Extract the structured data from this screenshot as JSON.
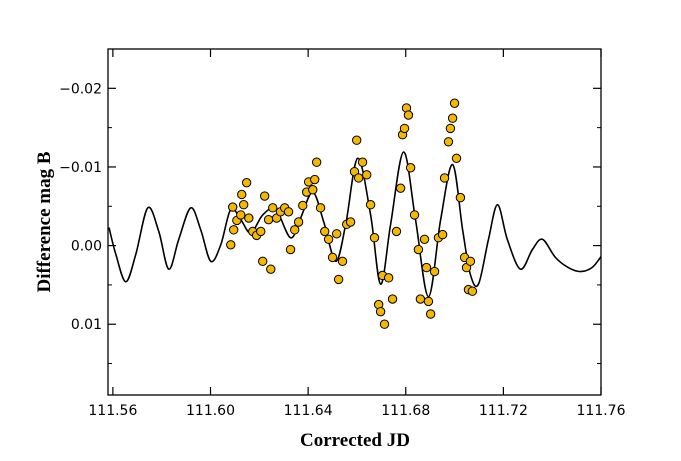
{
  "chart_data": {
    "type": "scatter",
    "xlabel": "Corrected JD",
    "ylabel": "Difference mag B",
    "xlim": [
      111.558,
      111.76
    ],
    "ylim": [
      -0.025,
      0.019
    ],
    "y_inverted": true,
    "xticks": [
      111.56,
      {
        "value": 111.6,
        "label": "111.60"
      },
      111.64,
      111.68,
      111.72,
      111.76
    ],
    "yticks": [
      {
        "value": -0.02,
        "label": "−0.02"
      },
      {
        "value": -0.01,
        "label": "−0.01"
      },
      {
        "value": 0,
        "label": "0.00"
      },
      0.01
    ],
    "yminor_ticks": [
      -0.015,
      -0.005,
      0.005,
      0.015
    ],
    "series": [
      {
        "type": "line",
        "color": "#000000",
        "x": [
          111.5584,
          111.5612,
          111.5653,
          111.5694,
          111.5743,
          111.5788,
          111.5829,
          111.587,
          111.5919,
          111.596,
          111.6001,
          111.6042,
          111.6083,
          111.6124,
          111.6165,
          111.6214,
          111.6267,
          111.6328,
          111.6369,
          111.6419,
          111.6464,
          111.6513,
          111.6554,
          111.6603,
          111.6656,
          111.6697,
          111.6738,
          111.6791,
          111.684,
          111.6893,
          111.6943,
          111.6992,
          111.7033,
          111.7065,
          111.7098,
          111.7139,
          111.7176,
          111.7216,
          111.727,
          111.7319,
          111.736,
          111.7413,
          111.7466,
          111.7514,
          111.7563,
          111.76
        ],
        "values": [
          -0.0023,
          0.0011,
          0.0046,
          0.0011,
          -0.0048,
          -0.0018,
          0.003,
          -0.0008,
          -0.0048,
          -0.002,
          0.002,
          -0.0001,
          -0.0046,
          -0.0033,
          -0.0016,
          -0.0039,
          -0.0046,
          -0.001,
          -0.0035,
          -0.0068,
          -0.003,
          0.002,
          -0.0027,
          -0.0111,
          -0.0039,
          0.0049,
          -0.0027,
          -0.0119,
          -0.0033,
          0.0065,
          -0.0033,
          -0.0103,
          -0.002,
          0.0037,
          0.0049,
          -0.0008,
          -0.0052,
          -0.0008,
          0.003,
          0.0005,
          -0.0008,
          0.0015,
          0.0028,
          0.0033,
          0.0028,
          0.0014
        ]
      },
      {
        "type": "scatter",
        "color": "#f5b800",
        "x": [
          111.6083,
          111.6091,
          111.6095,
          111.6108,
          111.6124,
          111.6128,
          111.6136,
          111.6148,
          111.6157,
          111.6173,
          111.6189,
          111.6206,
          111.6214,
          111.6222,
          111.6238,
          111.6247,
          111.6255,
          111.6271,
          111.6287,
          111.6304,
          111.632,
          111.6328,
          111.6345,
          111.6361,
          111.6378,
          111.6394,
          111.6402,
          111.6419,
          111.6427,
          111.6435,
          111.6451,
          111.6468,
          111.6484,
          111.65,
          111.6517,
          111.6525,
          111.6541,
          111.6558,
          111.6574,
          111.659,
          111.6599,
          111.6607,
          111.6623,
          111.664,
          111.6656,
          111.6672,
          111.6689,
          111.6697,
          111.6705,
          111.6713,
          111.673,
          111.6746,
          111.6762,
          111.6779,
          111.6787,
          111.6795,
          111.6803,
          111.6811,
          111.682,
          111.6836,
          111.6852,
          111.686,
          111.6877,
          111.6885,
          111.6893,
          111.6902,
          111.6918,
          111.6934,
          111.6951,
          111.6959,
          111.6975,
          111.6983,
          111.6992,
          111.7,
          111.7008,
          111.7024,
          111.7041,
          111.7049,
          111.7057,
          111.7065,
          111.7073
        ],
        "values": [
          -0.0001,
          -0.0049,
          -0.002,
          -0.0032,
          -0.0039,
          -0.0065,
          -0.0052,
          -0.008,
          -0.0035,
          -0.0018,
          -0.0013,
          -0.0018,
          0.002,
          -0.0063,
          -0.0033,
          0.003,
          -0.0048,
          -0.0035,
          -0.0043,
          -0.0048,
          -0.0043,
          0.0005,
          -0.002,
          -0.003,
          -0.0051,
          -0.0068,
          -0.0081,
          -0.0071,
          -0.0084,
          -0.0106,
          -0.0048,
          -0.0018,
          -0.0008,
          0.0015,
          -0.0015,
          0.0043,
          0.002,
          -0.0027,
          -0.003,
          -0.0094,
          -0.0134,
          -0.0086,
          -0.0106,
          -0.009,
          -0.0052,
          -0.001,
          0.0075,
          0.0084,
          0.0038,
          0.01,
          0.0041,
          0.0068,
          -0.0018,
          -0.0073,
          -0.0141,
          -0.0149,
          -0.0175,
          -0.0166,
          -0.0099,
          -0.0039,
          0.0005,
          0.0068,
          -0.0008,
          0.0028,
          0.0071,
          0.0087,
          0.0033,
          -0.001,
          -0.0014,
          -0.0086,
          -0.0132,
          -0.0149,
          -0.0162,
          -0.0181,
          -0.0111,
          -0.0061,
          0.0015,
          0.0028,
          0.0056,
          0.002,
          0.0058
        ]
      }
    ]
  }
}
